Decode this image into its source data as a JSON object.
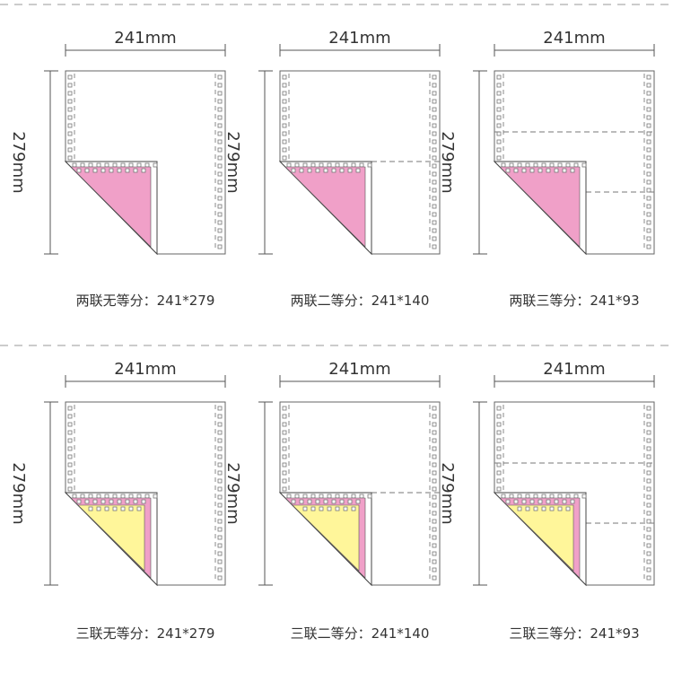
{
  "colors": {
    "pink": "#f0a0c8",
    "yellow": "#fff69a",
    "line": "#555555",
    "separator": "#9a9a9a"
  },
  "panels": [
    {
      "width_label": "241mm",
      "height_label": "279mm",
      "caption": "两联无等分：241*279",
      "plies": 2,
      "splits": 1
    },
    {
      "width_label": "241mm",
      "height_label": "279mm",
      "caption": "两联二等分：241*140",
      "plies": 2,
      "splits": 2
    },
    {
      "width_label": "241mm",
      "height_label": "279mm",
      "caption": "两联三等分：241*93",
      "plies": 2,
      "splits": 3
    },
    {
      "width_label": "241mm",
      "height_label": "279mm",
      "caption": "三联无等分：241*279",
      "plies": 3,
      "splits": 1
    },
    {
      "width_label": "241mm",
      "height_label": "279mm",
      "caption": "三联二等分：241*140",
      "plies": 3,
      "splits": 2
    },
    {
      "width_label": "241mm",
      "height_label": "279mm",
      "caption": "三联三等分：241*93",
      "plies": 3,
      "splits": 3
    }
  ]
}
